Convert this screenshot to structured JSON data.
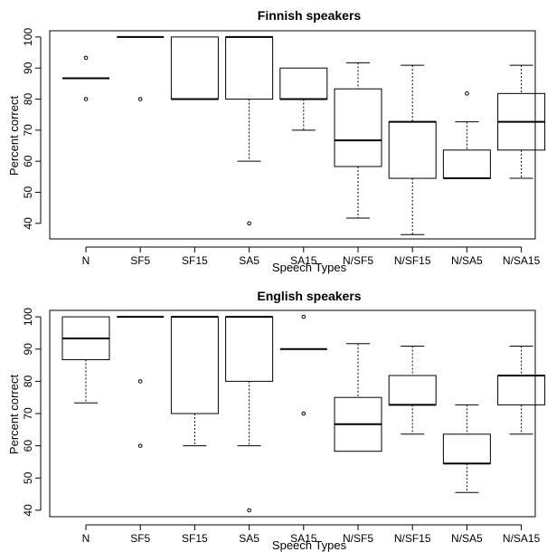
{
  "chart_data": [
    {
      "type": "box",
      "title": "Finnish speakers",
      "xlabel": "Speech Types",
      "ylabel": "Percent correct",
      "ylim": [
        35,
        102
      ],
      "yticks": [
        40,
        50,
        60,
        70,
        80,
        90,
        100
      ],
      "categories": [
        "N",
        "SF5",
        "SF15",
        "SA5",
        "SA15",
        "N/SF5",
        "N/SF15",
        "N/SA5",
        "N/SA15"
      ],
      "boxes": [
        {
          "category": "N",
          "min": 86.7,
          "q1": 86.7,
          "median": 86.7,
          "q3": 86.7,
          "max": 86.7,
          "outliers": [
            93.3,
            80
          ]
        },
        {
          "category": "SF5",
          "min": 100,
          "q1": 100,
          "median": 100,
          "q3": 100,
          "max": 100,
          "outliers": [
            80
          ]
        },
        {
          "category": "SF15",
          "min": 80,
          "q1": 80,
          "median": 80,
          "q3": 100,
          "max": 100,
          "outliers": []
        },
        {
          "category": "SA5",
          "min": 60,
          "q1": 80,
          "median": 100,
          "q3": 100,
          "max": 100,
          "outliers": [
            40
          ]
        },
        {
          "category": "SA15",
          "min": 70,
          "q1": 80,
          "median": 80,
          "q3": 90,
          "max": 90,
          "outliers": []
        },
        {
          "category": "N/SF5",
          "min": 41.7,
          "q1": 58.3,
          "median": 66.7,
          "q3": 83.3,
          "max": 91.7,
          "outliers": []
        },
        {
          "category": "N/SF15",
          "min": 36.4,
          "q1": 54.5,
          "median": 72.7,
          "q3": 72.7,
          "max": 90.9,
          "outliers": []
        },
        {
          "category": "N/SA5",
          "min": 54.5,
          "q1": 54.5,
          "median": 54.5,
          "q3": 63.6,
          "max": 72.7,
          "outliers": [
            81.8
          ]
        },
        {
          "category": "N/SA15",
          "min": 54.5,
          "q1": 63.6,
          "median": 72.7,
          "q3": 81.8,
          "max": 90.9,
          "outliers": []
        }
      ]
    },
    {
      "type": "box",
      "title": "English speakers",
      "xlabel": "Speech Types",
      "ylabel": "Percent correct",
      "ylim": [
        38,
        102
      ],
      "yticks": [
        40,
        50,
        60,
        70,
        80,
        90,
        100
      ],
      "categories": [
        "N",
        "SF5",
        "SF15",
        "SA5",
        "SA15",
        "N/SF5",
        "N/SF15",
        "N/SA5",
        "N/SA15"
      ],
      "boxes": [
        {
          "category": "N",
          "min": 73.3,
          "q1": 86.7,
          "median": 93.3,
          "q3": 100,
          "max": 100,
          "outliers": []
        },
        {
          "category": "SF5",
          "min": 100,
          "q1": 100,
          "median": 100,
          "q3": 100,
          "max": 100,
          "outliers": [
            80,
            60
          ]
        },
        {
          "category": "SF15",
          "min": 60,
          "q1": 70,
          "median": 100,
          "q3": 100,
          "max": 100,
          "outliers": []
        },
        {
          "category": "SA5",
          "min": 60,
          "q1": 80,
          "median": 100,
          "q3": 100,
          "max": 100,
          "outliers": [
            40
          ]
        },
        {
          "category": "SA15",
          "min": 90,
          "q1": 90,
          "median": 90,
          "q3": 90,
          "max": 90,
          "outliers": [
            100,
            70
          ]
        },
        {
          "category": "N/SF5",
          "min": 58.3,
          "q1": 58.3,
          "median": 66.7,
          "q3": 75,
          "max": 91.7,
          "outliers": []
        },
        {
          "category": "N/SF15",
          "min": 63.6,
          "q1": 72.7,
          "median": 72.7,
          "q3": 81.8,
          "max": 90.9,
          "outliers": []
        },
        {
          "category": "N/SA5",
          "min": 45.5,
          "q1": 54.5,
          "median": 54.5,
          "q3": 63.6,
          "max": 72.7,
          "outliers": []
        },
        {
          "category": "N/SA15",
          "min": 63.6,
          "q1": 72.7,
          "median": 81.8,
          "q3": 81.8,
          "max": 90.9,
          "outliers": []
        }
      ]
    }
  ]
}
